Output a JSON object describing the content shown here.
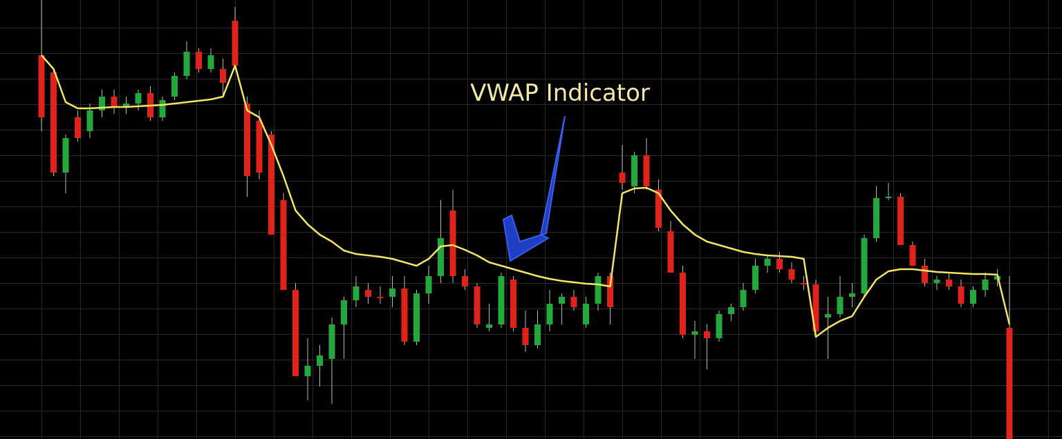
{
  "chart_data": {
    "type": "candlestick",
    "annotation": "VWAP Indicator",
    "ylim": [
      0,
      636
    ],
    "up_color": "#22a83c",
    "down_color": "#e1221b",
    "open": [
      556,
      531,
      386,
      466,
      446,
      476,
      496,
      481,
      486,
      501,
      466,
      496,
      526,
      561,
      536,
      536,
      606,
      486,
      461,
      441,
      346,
      216,
      91,
      106,
      116,
      166,
      201,
      216,
      206,
      206,
      218,
      141,
      211,
      236,
      331,
      236,
      221,
      161,
      166,
      231,
      161,
      136,
      166,
      196,
      206,
      166,
      196,
      236,
      386,
      366,
      411,
      361,
      301,
      241,
      151,
      156,
      146,
      181,
      191,
      216,
      251,
      261,
      246,
      226,
      224,
      176,
      181,
      206,
      211,
      291,
      349,
      351,
      281,
      251,
      226,
      231,
      221,
      196,
      216,
      231,
      161
    ],
    "high": [
      636,
      536,
      441,
      476,
      486,
      506,
      506,
      496,
      506,
      511,
      496,
      531,
      576,
      566,
      566,
      551,
      626,
      496,
      476,
      446,
      356,
      226,
      146,
      136,
      176,
      206,
      236,
      226,
      221,
      236,
      236,
      216,
      251,
      346,
      361,
      246,
      226,
      196,
      241,
      236,
      186,
      186,
      216,
      211,
      216,
      206,
      241,
      241,
      426,
      416,
      436,
      376,
      316,
      251,
      171,
      166,
      186,
      196,
      226,
      261,
      266,
      271,
      256,
      236,
      231,
      206,
      236,
      226,
      296,
      366,
      371,
      356,
      286,
      261,
      236,
      241,
      231,
      221,
      241,
      246,
      236
    ],
    "low": [
      446,
      381,
      356,
      431,
      436,
      466,
      471,
      471,
      476,
      461,
      461,
      491,
      521,
      531,
      531,
      496,
      536,
      351,
      376,
      296,
      216,
      91,
      56,
      76,
      51,
      116,
      191,
      196,
      196,
      191,
      136,
      136,
      196,
      226,
      226,
      216,
      161,
      156,
      161,
      156,
      126,
      131,
      156,
      166,
      186,
      161,
      186,
      166,
      361,
      356,
      361,
      301,
      241,
      146,
      116,
      101,
      141,
      171,
      186,
      211,
      241,
      241,
      226,
      216,
      151,
      116,
      176,
      191,
      206,
      286,
      346,
      281,
      251,
      221,
      216,
      216,
      191,
      191,
      206,
      221,
      0
    ],
    "close": [
      466,
      386,
      436,
      436,
      476,
      496,
      481,
      486,
      501,
      466,
      491,
      526,
      561,
      536,
      556,
      516,
      541,
      381,
      386,
      296,
      216,
      91,
      106,
      121,
      166,
      201,
      221,
      206,
      204,
      218,
      141,
      211,
      236,
      291,
      236,
      221,
      166,
      166,
      236,
      161,
      136,
      166,
      196,
      206,
      191,
      196,
      236,
      191,
      371,
      411,
      366,
      306,
      241,
      151,
      156,
      146,
      181,
      191,
      216,
      251,
      261,
      246,
      231,
      224,
      156,
      181,
      206,
      211,
      291,
      349,
      351,
      281,
      251,
      226,
      231,
      221,
      196,
      216,
      231,
      236,
      0
    ],
    "vwap": {
      "color": "#f5e663",
      "values": [
        556,
        536,
        488,
        479,
        479,
        480,
        481,
        481,
        482,
        483,
        484,
        486,
        488,
        490,
        492,
        496,
        541,
        476,
        466,
        426,
        381,
        331,
        311,
        296,
        286,
        273,
        268,
        266,
        264,
        261,
        256,
        251,
        261,
        279,
        281,
        274,
        266,
        256,
        251,
        246,
        241,
        236,
        232,
        229,
        227,
        225,
        224,
        221,
        356,
        363,
        364,
        356,
        331,
        311,
        296,
        286,
        281,
        276,
        271,
        268,
        266,
        265,
        264,
        261,
        148,
        161,
        171,
        178,
        206,
        231,
        243,
        246,
        246,
        244,
        242,
        241,
        240,
        239,
        239,
        238,
        166
      ]
    }
  }
}
